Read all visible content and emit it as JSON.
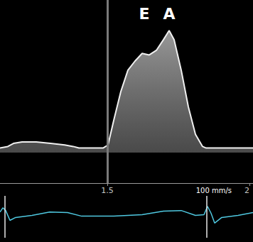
{
  "chart_data": [
    {
      "type": "area",
      "x": [
        1.1225,
        1.15,
        1.17,
        1.2,
        1.25,
        1.3,
        1.35,
        1.38,
        1.4,
        1.45,
        1.485,
        1.5025,
        1.5225,
        1.5475,
        1.5725,
        1.5975,
        1.6225,
        1.6475,
        1.6725,
        1.6975,
        1.7175,
        1.735,
        1.76,
        1.785,
        1.81,
        1.835,
        1.8475,
        1.9,
        1.95,
        2.0125
      ],
      "values": [
        0.03,
        0.04,
        0.06,
        0.07,
        0.07,
        0.06,
        0.05,
        0.04,
        0.03,
        0.03,
        0.03,
        0.05,
        0.21,
        0.4,
        0.54,
        0.6,
        0.65,
        0.64,
        0.67,
        0.74,
        0.8,
        0.74,
        0.54,
        0.3,
        0.12,
        0.04,
        0.03,
        0.03,
        0.03,
        0.03
      ],
      "color": "#d9d9d9",
      "xlim": [
        1.1225,
        2.0125
      ],
      "xticks": [
        1.5,
        2
      ],
      "ylim": [
        -0.2,
        1.0
      ],
      "tick_labels": "x",
      "annotations": [
        {
          "text": "E",
          "x": 1.63,
          "y": 0.91
        },
        {
          "text": "A",
          "x": 1.7175,
          "y": 0.91
        }
      ],
      "vlines": [
        1.5025
      ]
    },
    {
      "type": "line",
      "x": [
        1.1225,
        1.1325,
        1.1425,
        1.1575,
        1.1775,
        1.235,
        1.2975,
        1.36,
        1.41,
        1.5225,
        1.6225,
        1.6975,
        1.76,
        1.81,
        1.84,
        1.8525,
        1.865,
        1.8775,
        1.9025,
        1.96,
        2.0125
      ],
      "values": [
        0.23,
        0.43,
        0.3,
        -0.17,
        -0.03,
        0.07,
        0.23,
        0.2,
        0.03,
        0.03,
        0.1,
        0.27,
        0.3,
        0.07,
        0.1,
        0.5,
        0.17,
        -0.3,
        -0.03,
        0.07,
        0.2
      ],
      "color": "#4fc8e0",
      "xlim": [
        1.1225,
        2.0125
      ],
      "ylim": [
        -1,
        1
      ],
      "tick_labels": false,
      "sweep_label": "100 mm/s",
      "vlines": [
        1.1375,
        1.8525
      ]
    }
  ]
}
